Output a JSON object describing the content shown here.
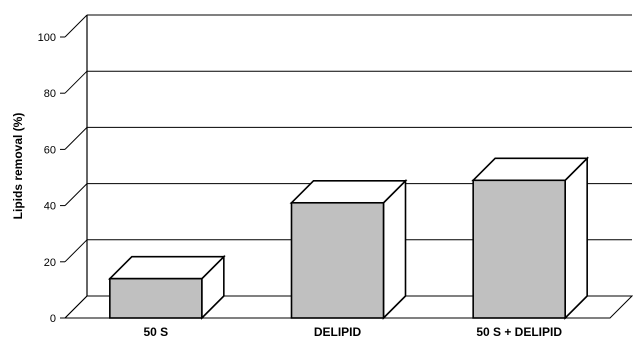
{
  "chart_data": {
    "type": "bar",
    "style": "3d",
    "categories": [
      "50 S",
      "DELIPID",
      "50 S + DELIPID"
    ],
    "values": [
      14,
      41,
      49
    ],
    "ylabel": "Lipids removal (%)",
    "ylim": [
      0,
      100
    ],
    "yticks": [
      0,
      20,
      40,
      60,
      80,
      100
    ],
    "grid": true,
    "colors": {
      "bar_front": "#c0c0c0",
      "bar_top": "#ffffff",
      "bar_side": "#ffffff",
      "line": "#000000"
    }
  }
}
